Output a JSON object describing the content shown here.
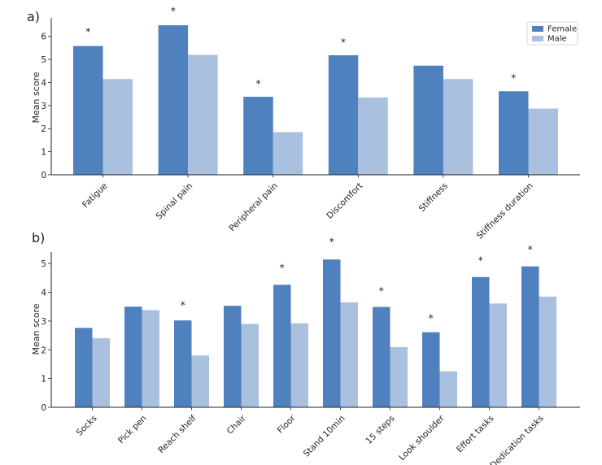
{
  "colors": {
    "female": "#4e81bd",
    "male": "#a9c0de",
    "axis": "#222222"
  },
  "chart_data": [
    {
      "type": "bar",
      "panel_label": "a)",
      "ylabel": "Mean score",
      "ylim": [
        0,
        6.8
      ],
      "yticks": [
        "0",
        "1",
        "2",
        "3",
        "4",
        "5",
        "6"
      ],
      "legend": {
        "position": "top-right",
        "entries": [
          "Female",
          "Male"
        ]
      },
      "categories": [
        "Fatigue",
        "Spinal pain",
        "Peripheral pain",
        "Discomfort",
        "Stiffness",
        "Stiffness duration"
      ],
      "series": [
        {
          "name": "Female",
          "values": [
            5.58,
            6.48,
            3.38,
            5.18,
            4.73,
            3.62
          ]
        },
        {
          "name": "Male",
          "values": [
            4.15,
            5.2,
            1.85,
            3.35,
            4.15,
            2.87
          ]
        }
      ],
      "significance": [
        "*",
        "*",
        "*",
        "*",
        "",
        "*"
      ],
      "significance_y": [
        6.2,
        7.1,
        3.95,
        5.75,
        null,
        4.2
      ]
    },
    {
      "type": "bar",
      "panel_label": "b)",
      "ylabel": "Mean score",
      "ylim": [
        0,
        5.4
      ],
      "yticks": [
        "0",
        "1",
        "2",
        "3",
        "4",
        "5"
      ],
      "categories": [
        "Socks",
        "Pick pen",
        "Reach shelf",
        "Chair",
        "Floor",
        "Stand 10min",
        "15 steps",
        "Look shoulder",
        "Effort tasks",
        "Dedication tasks"
      ],
      "series": [
        {
          "name": "Female",
          "values": [
            2.76,
            3.5,
            3.02,
            3.53,
            4.26,
            5.14,
            3.49,
            2.61,
            4.53,
            4.9
          ]
        },
        {
          "name": "Male",
          "values": [
            2.4,
            3.38,
            1.8,
            2.9,
            2.92,
            3.65,
            2.09,
            1.25,
            3.61,
            3.85
          ]
        }
      ],
      "significance": [
        "",
        "",
        "*",
        "",
        "*",
        "*",
        "*",
        "*",
        "*",
        "*"
      ],
      "significance_y": [
        null,
        null,
        3.55,
        null,
        4.85,
        5.75,
        4.05,
        3.1,
        5.1,
        5.48
      ]
    }
  ]
}
